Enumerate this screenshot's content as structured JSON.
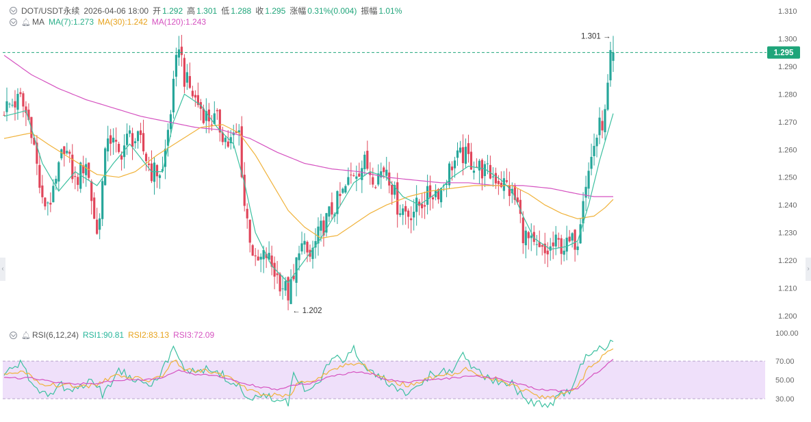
{
  "header": {
    "symbol": "DOT/USDT永续",
    "datetime": "2026-04-06 18:00",
    "open_label": "开",
    "open": "1.292",
    "high_label": "高",
    "high": "1.301",
    "low_label": "低",
    "low": "1.288",
    "close_label": "收",
    "close": "1.295",
    "change_label": "涨幅",
    "change": "0.31%(0.004)",
    "amp_label": "振幅",
    "amp": "1.01%"
  },
  "ma_legend": {
    "label": "MA",
    "ma7": "MA(7):1.273",
    "ma30": "MA(30):1.242",
    "ma120": "MA(120):1.243"
  },
  "rsi_legend": {
    "label": "RSI(6,12,24)",
    "rsi1": "RSI1:90.81",
    "rsi2": "RSI2:83.13",
    "rsi3": "RSI3:72.09"
  },
  "colors": {
    "up": "#26a69a",
    "down": "#e0455a",
    "ma7": "#3cc0a0",
    "ma30": "#f0b23a",
    "ma120": "#d552c0",
    "rsi_band": "#efe0fa",
    "price_tag": "#1fa57a"
  },
  "chart_data": [
    {
      "type": "candlestick",
      "title": "DOT/USDT永续",
      "ylim": [
        1.2,
        1.31
      ],
      "y_ticks": [
        "1.310",
        "1.300",
        "1.290",
        "1.280",
        "1.270",
        "1.260",
        "1.250",
        "1.240",
        "1.230",
        "1.220",
        "1.210",
        "1.200"
      ],
      "last_price": "1.295",
      "annotation_high": "1.301",
      "annotation_low": "1.202",
      "anchors": {
        "close": [
          [
            0,
            1.275
          ],
          [
            6,
            1.278
          ],
          [
            10,
            1.268
          ],
          [
            14,
            1.24
          ],
          [
            18,
            1.243
          ],
          [
            22,
            1.262
          ],
          [
            26,
            1.248
          ],
          [
            30,
            1.256
          ],
          [
            34,
            1.229
          ],
          [
            38,
            1.266
          ],
          [
            42,
            1.258
          ],
          [
            46,
            1.265
          ],
          [
            50,
            1.262
          ],
          [
            54,
            1.252
          ],
          [
            58,
            1.252
          ],
          [
            62,
            1.282
          ],
          [
            64,
            1.299
          ],
          [
            66,
            1.286
          ],
          [
            70,
            1.278
          ],
          [
            74,
            1.272
          ],
          [
            78,
            1.27
          ],
          [
            82,
            1.262
          ],
          [
            86,
            1.266
          ],
          [
            88,
            1.24
          ],
          [
            92,
            1.218
          ],
          [
            96,
            1.222
          ],
          [
            100,
            1.214
          ],
          [
            104,
            1.208
          ],
          [
            106,
            1.212
          ],
          [
            108,
            1.226
          ],
          [
            112,
            1.221
          ],
          [
            116,
            1.231
          ],
          [
            120,
            1.238
          ],
          [
            124,
            1.244
          ],
          [
            128,
            1.252
          ],
          [
            132,
            1.255
          ],
          [
            136,
            1.25
          ],
          [
            140,
            1.254
          ],
          [
            144,
            1.24
          ],
          [
            148,
            1.237
          ],
          [
            152,
            1.24
          ],
          [
            156,
            1.244
          ],
          [
            160,
            1.246
          ],
          [
            164,
            1.255
          ],
          [
            168,
            1.258
          ],
          [
            172,
            1.255
          ],
          [
            176,
            1.252
          ],
          [
            180,
            1.25
          ],
          [
            184,
            1.247
          ],
          [
            188,
            1.24
          ],
          [
            190,
            1.23
          ],
          [
            194,
            1.224
          ],
          [
            198,
            1.222
          ],
          [
            202,
            1.226
          ],
          [
            206,
            1.225
          ],
          [
            210,
            1.228
          ],
          [
            212,
            1.245
          ],
          [
            214,
            1.252
          ],
          [
            216,
            1.262
          ],
          [
            218,
            1.268
          ],
          [
            220,
            1.272
          ],
          [
            221,
            1.282
          ],
          [
            222,
            1.292
          ],
          [
            223,
            1.295
          ]
        ],
        "ma7": [
          [
            0,
            1.272
          ],
          [
            8,
            1.274
          ],
          [
            14,
            1.255
          ],
          [
            20,
            1.245
          ],
          [
            26,
            1.252
          ],
          [
            34,
            1.247
          ],
          [
            40,
            1.255
          ],
          [
            46,
            1.262
          ],
          [
            54,
            1.252
          ],
          [
            58,
            1.252
          ],
          [
            62,
            1.27
          ],
          [
            66,
            1.28
          ],
          [
            72,
            1.276
          ],
          [
            78,
            1.268
          ],
          [
            84,
            1.262
          ],
          [
            88,
            1.248
          ],
          [
            92,
            1.23
          ],
          [
            98,
            1.218
          ],
          [
            104,
            1.212
          ],
          [
            110,
            1.22
          ],
          [
            116,
            1.228
          ],
          [
            122,
            1.238
          ],
          [
            128,
            1.248
          ],
          [
            134,
            1.252
          ],
          [
            140,
            1.25
          ],
          [
            146,
            1.243
          ],
          [
            152,
            1.24
          ],
          [
            158,
            1.244
          ],
          [
            164,
            1.25
          ],
          [
            170,
            1.254
          ],
          [
            176,
            1.253
          ],
          [
            182,
            1.249
          ],
          [
            186,
            1.245
          ],
          [
            190,
            1.236
          ],
          [
            194,
            1.228
          ],
          [
            200,
            1.224
          ],
          [
            206,
            1.225
          ],
          [
            210,
            1.227
          ],
          [
            214,
            1.24
          ],
          [
            218,
            1.256
          ],
          [
            223,
            1.273
          ]
        ],
        "ma30": [
          [
            0,
            1.264
          ],
          [
            10,
            1.266
          ],
          [
            16,
            1.262
          ],
          [
            24,
            1.257
          ],
          [
            34,
            1.251
          ],
          [
            42,
            1.25
          ],
          [
            48,
            1.252
          ],
          [
            56,
            1.258
          ],
          [
            64,
            1.263
          ],
          [
            72,
            1.268
          ],
          [
            80,
            1.269
          ],
          [
            86,
            1.266
          ],
          [
            92,
            1.258
          ],
          [
            98,
            1.248
          ],
          [
            104,
            1.238
          ],
          [
            110,
            1.232
          ],
          [
            116,
            1.228
          ],
          [
            122,
            1.229
          ],
          [
            128,
            1.233
          ],
          [
            134,
            1.237
          ],
          [
            140,
            1.24
          ],
          [
            148,
            1.243
          ],
          [
            156,
            1.245
          ],
          [
            164,
            1.246
          ],
          [
            172,
            1.247
          ],
          [
            180,
            1.247
          ],
          [
            186,
            1.247
          ],
          [
            192,
            1.244
          ],
          [
            198,
            1.24
          ],
          [
            204,
            1.237
          ],
          [
            210,
            1.235
          ],
          [
            216,
            1.236
          ],
          [
            220,
            1.239
          ],
          [
            223,
            1.242
          ]
        ],
        "ma120": [
          [
            0,
            1.294
          ],
          [
            10,
            1.287
          ],
          [
            20,
            1.282
          ],
          [
            30,
            1.278
          ],
          [
            40,
            1.275
          ],
          [
            50,
            1.272
          ],
          [
            60,
            1.27
          ],
          [
            70,
            1.268
          ],
          [
            80,
            1.267
          ],
          [
            90,
            1.264
          ],
          [
            100,
            1.259
          ],
          [
            110,
            1.255
          ],
          [
            120,
            1.253
          ],
          [
            130,
            1.252
          ],
          [
            140,
            1.25
          ],
          [
            150,
            1.249
          ],
          [
            160,
            1.248
          ],
          [
            170,
            1.248
          ],
          [
            180,
            1.247
          ],
          [
            190,
            1.247
          ],
          [
            200,
            1.246
          ],
          [
            210,
            1.244
          ],
          [
            216,
            1.243
          ],
          [
            223,
            1.243
          ]
        ]
      }
    },
    {
      "type": "line",
      "title": "RSI(6,12,24)",
      "ylim": [
        20,
        100
      ],
      "y_ticks": [
        "100.00",
        "70.00",
        "50.00",
        "30.00"
      ],
      "band": [
        30,
        70
      ],
      "series": [
        {
          "name": "RSI1",
          "last": 90.81,
          "anchors": [
            [
              0,
              58
            ],
            [
              6,
              66
            ],
            [
              12,
              40
            ],
            [
              16,
              33
            ],
            [
              20,
              45
            ],
            [
              26,
              38
            ],
            [
              32,
              52
            ],
            [
              36,
              35
            ],
            [
              42,
              60
            ],
            [
              48,
              52
            ],
            [
              54,
              47
            ],
            [
              58,
              60
            ],
            [
              62,
              83
            ],
            [
              66,
              60
            ],
            [
              72,
              62
            ],
            [
              80,
              55
            ],
            [
              86,
              42
            ],
            [
              90,
              30
            ],
            [
              96,
              33
            ],
            [
              100,
              28
            ],
            [
              104,
              25
            ],
            [
              106,
              55
            ],
            [
              110,
              40
            ],
            [
              116,
              52
            ],
            [
              120,
              75
            ],
            [
              124,
              68
            ],
            [
              128,
              85
            ],
            [
              132,
              62
            ],
            [
              136,
              55
            ],
            [
              140,
              50
            ],
            [
              144,
              35
            ],
            [
              150,
              40
            ],
            [
              156,
              55
            ],
            [
              164,
              60
            ],
            [
              168,
              75
            ],
            [
              172,
              60
            ],
            [
              176,
              55
            ],
            [
              180,
              50
            ],
            [
              186,
              45
            ],
            [
              190,
              30
            ],
            [
              196,
              25
            ],
            [
              200,
              22
            ],
            [
              204,
              35
            ],
            [
              208,
              38
            ],
            [
              212,
              70
            ],
            [
              216,
              80
            ],
            [
              220,
              85
            ],
            [
              223,
              91
            ]
          ]
        },
        {
          "name": "RSI2",
          "last": 83.13,
          "anchors": [
            [
              0,
              55
            ],
            [
              8,
              58
            ],
            [
              14,
              46
            ],
            [
              20,
              44
            ],
            [
              28,
              44
            ],
            [
              34,
              44
            ],
            [
              40,
              55
            ],
            [
              46,
              52
            ],
            [
              54,
              50
            ],
            [
              58,
              55
            ],
            [
              62,
              72
            ],
            [
              66,
              60
            ],
            [
              72,
              60
            ],
            [
              80,
              55
            ],
            [
              86,
              46
            ],
            [
              92,
              36
            ],
            [
              98,
              34
            ],
            [
              104,
              32
            ],
            [
              108,
              48
            ],
            [
              114,
              48
            ],
            [
              120,
              62
            ],
            [
              126,
              66
            ],
            [
              130,
              70
            ],
            [
              136,
              56
            ],
            [
              142,
              48
            ],
            [
              148,
              44
            ],
            [
              156,
              52
            ],
            [
              164,
              56
            ],
            [
              170,
              62
            ],
            [
              176,
              54
            ],
            [
              182,
              50
            ],
            [
              188,
              42
            ],
            [
              194,
              34
            ],
            [
              200,
              30
            ],
            [
              206,
              36
            ],
            [
              210,
              42
            ],
            [
              214,
              64
            ],
            [
              218,
              72
            ],
            [
              223,
              83
            ]
          ]
        },
        {
          "name": "RSI3",
          "last": 72.09,
          "anchors": [
            [
              0,
              52
            ],
            [
              10,
              52
            ],
            [
              18,
              48
            ],
            [
              26,
              46
            ],
            [
              34,
              46
            ],
            [
              42,
              50
            ],
            [
              50,
              50
            ],
            [
              58,
              52
            ],
            [
              64,
              60
            ],
            [
              70,
              56
            ],
            [
              78,
              54
            ],
            [
              86,
              48
            ],
            [
              94,
              42
            ],
            [
              100,
              40
            ],
            [
              106,
              44
            ],
            [
              112,
              46
            ],
            [
              120,
              54
            ],
            [
              128,
              58
            ],
            [
              134,
              57
            ],
            [
              140,
              50
            ],
            [
              148,
              48
            ],
            [
              156,
              50
            ],
            [
              164,
              52
            ],
            [
              172,
              54
            ],
            [
              180,
              52
            ],
            [
              188,
              46
            ],
            [
              196,
              40
            ],
            [
              204,
              38
            ],
            [
              210,
              40
            ],
            [
              214,
              52
            ],
            [
              218,
              60
            ],
            [
              223,
              72
            ]
          ]
        }
      ]
    }
  ]
}
